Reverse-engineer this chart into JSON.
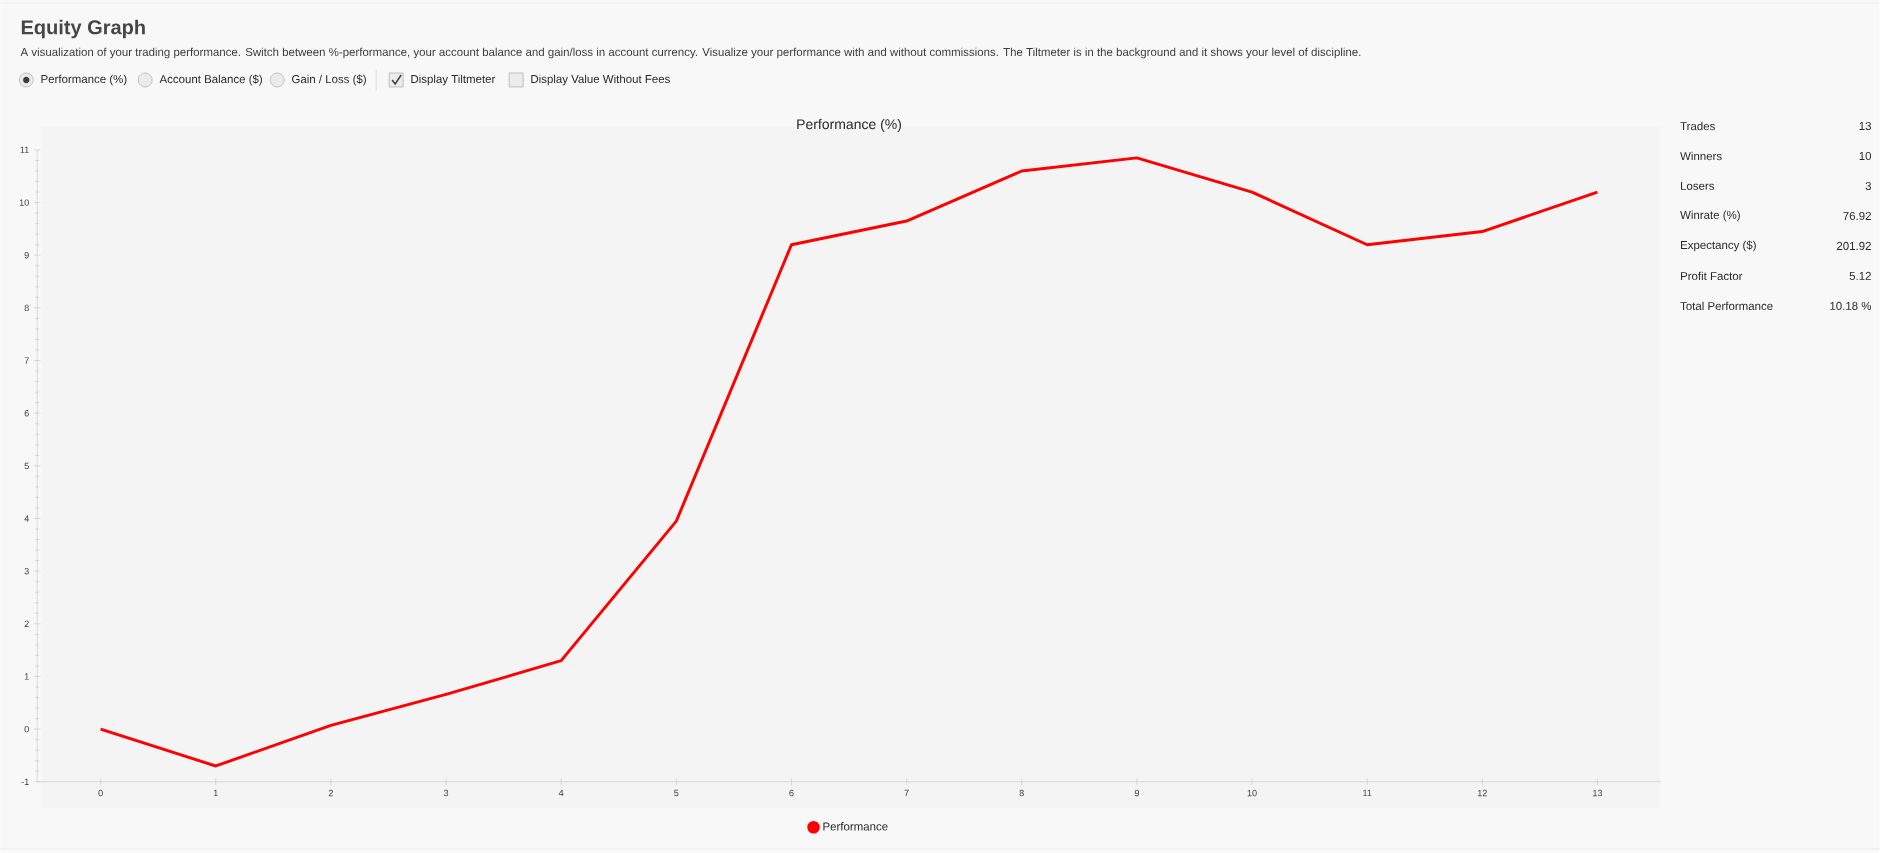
{
  "chart_data": [
    {
      "type": "other",
      "title": "Equity Graph",
      "subtitle": "A visualization of your trading performance. Switch between %-performance, your account balance and gain/loss in account currency. Visualize your performance with and without commissions. The Tiltmeter is in the background and it shows your level of discipline.",
      "annotations": [
        "Performance (%)",
        "Account Balance ($)",
        "Gain / Loss ($)",
        "Display Tiltmeter",
        "Display Value Without Fees"
      ]
    },
    {
      "type": "line",
      "title": "Performance (%)",
      "x": [
        0,
        1,
        2,
        3,
        4,
        5,
        6,
        7,
        8,
        9,
        10,
        11,
        12,
        13
      ],
      "series": [
        {
          "name": "Performance",
          "color": "#ff0000",
          "values": [
            0,
            -0.7,
            0.07,
            0.66,
            1.3,
            3.95,
            9.2,
            9.65,
            10.6,
            10.85,
            10.2,
            9.2,
            9.45,
            10.2
          ]
        }
      ],
      "xlim": [
        -0.55,
        13.55
      ],
      "xticks": [
        0,
        1,
        2,
        3,
        4,
        5,
        6,
        7,
        8,
        9,
        10,
        11,
        12,
        13
      ],
      "ylim": [
        -1,
        11
      ],
      "yticks": [
        -1,
        0,
        1,
        2,
        3,
        4,
        5,
        6,
        7,
        8,
        9,
        10,
        11
      ],
      "legend": "bottom"
    },
    {
      "type": "other",
      "annotations": [
        "Trades",
        "13",
        "Winners",
        "10",
        "Losers",
        "3",
        "Winrate (%)",
        "76.92",
        "Expectancy ($)",
        "201.92",
        "Profit Factor",
        "5.12",
        "Total Performance",
        "10.18 %"
      ]
    }
  ]
}
